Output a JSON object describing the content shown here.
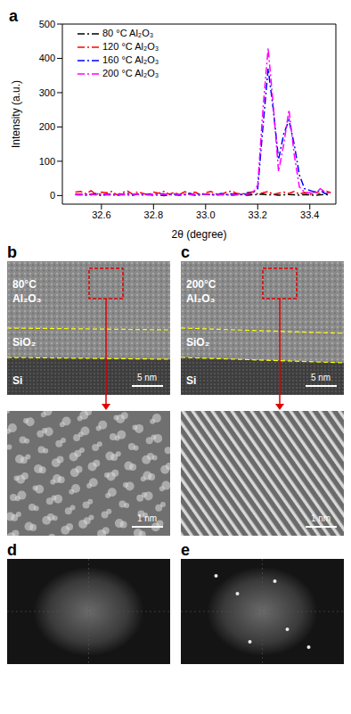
{
  "chart_data": {
    "type": "line",
    "label": "a",
    "x_label": "2θ (degree)",
    "y_label": "Intensity (a.u.)",
    "legend": "upper left",
    "grid": false,
    "xlim": [
      32.45,
      33.5
    ],
    "xticks": [
      32.6,
      32.8,
      {
        "value": 33,
        "label": "33.0"
      },
      33.2,
      33.4
    ],
    "ylim": [
      -25,
      500
    ],
    "yticks": [
      0,
      100,
      200,
      300,
      400,
      500
    ],
    "x": [
      32.5,
      32.52,
      32.54,
      32.56,
      32.58,
      32.6,
      32.62,
      32.64,
      32.66,
      32.68,
      32.7,
      32.72,
      32.74,
      32.76,
      32.78,
      32.8,
      32.82,
      32.84,
      32.86,
      32.88,
      32.9,
      32.92,
      32.94,
      32.96,
      32.98,
      33.0,
      33.02,
      33.04,
      33.06,
      33.08,
      33.1,
      33.12,
      33.14,
      33.16,
      33.18,
      33.2,
      33.22,
      33.24,
      33.26,
      33.28,
      33.3,
      33.32,
      33.34,
      33.36,
      33.38,
      33.4,
      33.42,
      33.44,
      33.46,
      33.48
    ],
    "series": [
      {
        "name": "80 °C Al₂O₃",
        "color": "#000000",
        "line_style": "dashdot",
        "values": [
          2,
          3,
          1,
          4,
          2,
          0,
          3,
          2,
          1,
          3,
          2,
          1,
          4,
          2,
          3,
          1,
          2,
          0,
          3,
          2,
          1,
          2,
          3,
          1,
          2,
          4,
          2,
          1,
          3,
          2,
          1,
          2,
          3,
          1,
          2,
          3,
          4,
          2,
          3,
          1,
          2,
          3,
          2,
          1,
          3,
          2,
          1,
          2,
          3,
          2
        ]
      },
      {
        "name": "120 °C Al₂O₃",
        "color": "#ff0000",
        "line_style": "dashdot",
        "values": [
          10,
          12,
          5,
          14,
          3,
          10,
          8,
          12,
          2,
          9,
          13,
          4,
          11,
          6,
          2,
          10,
          7,
          12,
          4,
          9,
          3,
          11,
          6,
          10,
          2,
          8,
          12,
          5,
          3,
          10,
          13,
          6,
          4,
          9,
          11,
          5,
          8,
          12,
          3,
          7,
          10,
          6,
          12,
          4,
          9,
          2,
          11,
          5,
          14,
          8
        ]
      },
      {
        "name": "160 °C Al₂O₃",
        "color": "#0000ff",
        "line_style": "dashdot",
        "values": [
          4,
          3,
          5,
          2,
          6,
          4,
          3,
          5,
          2,
          4,
          6,
          3,
          5,
          2,
          4,
          3,
          6,
          4,
          2,
          5,
          3,
          4,
          6,
          2,
          5,
          3,
          4,
          2,
          6,
          3,
          5,
          4,
          2,
          6,
          8,
          20,
          200,
          370,
          250,
          105,
          180,
          220,
          150,
          60,
          20,
          15,
          10,
          15,
          5,
          10
        ]
      },
      {
        "name": "200 °C Al₂O₃",
        "color": "#ff00ff",
        "line_style": "dashdot",
        "values": [
          3,
          2,
          4,
          3,
          2,
          5,
          3,
          2,
          4,
          3,
          2,
          4,
          3,
          5,
          2,
          3,
          4,
          2,
          3,
          5,
          2,
          4,
          3,
          2,
          4,
          3,
          5,
          2,
          3,
          4,
          2,
          3,
          5,
          4,
          6,
          30,
          250,
          430,
          260,
          70,
          150,
          250,
          120,
          25,
          10,
          8,
          5,
          20,
          10,
          5
        ]
      }
    ]
  },
  "images": [
    {
      "label": "b",
      "film": [
        "80°C",
        "Al₂O₃"
      ],
      "oxide": "SiO₂",
      "substrate": "Si",
      "scale": "5 nm",
      "zoom_scale": "1 nm",
      "ordered": false
    },
    {
      "label": "c",
      "film": [
        "200°C",
        "Al₂O₃"
      ],
      "oxide": "SiO₂",
      "substrate": "Si",
      "scale": "5 nm",
      "zoom_scale": "1 nm",
      "ordered": true
    }
  ],
  "fft": [
    {
      "label": "d",
      "ordered": false
    },
    {
      "label": "e",
      "ordered": true
    }
  ]
}
